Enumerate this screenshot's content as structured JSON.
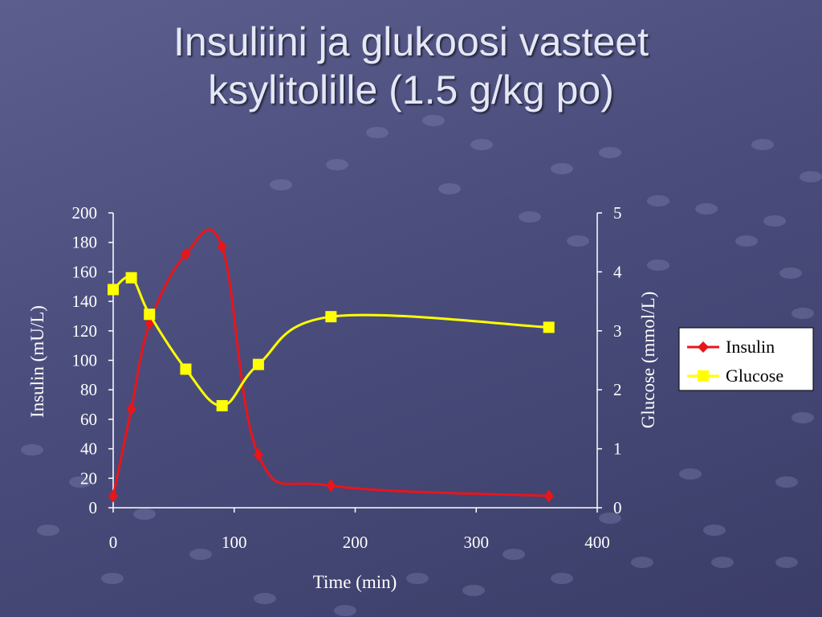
{
  "slide": {
    "title_line1": "Insuliini ja glukoosi vasteet",
    "title_line2": "ksylitolille (1.5 g/kg po)"
  },
  "colors": {
    "background": "#4a4d7c",
    "insulin": "#e8151b",
    "glucose": "#ffff00",
    "text": "#ffffff",
    "legend_bg": "#ffffff"
  },
  "chart_data": {
    "type": "line",
    "title": "",
    "xlabel": "Time (min)",
    "ylabel": "Insulin (mU/L)",
    "y2label": "Glucose (mmol/L)",
    "xlim": [
      0,
      400
    ],
    "ylim": [
      0,
      200
    ],
    "y2lim": [
      0,
      5
    ],
    "xticks": [
      0,
      100,
      200,
      300,
      400
    ],
    "yticks": [
      0,
      20,
      40,
      60,
      80,
      100,
      120,
      140,
      160,
      180,
      200
    ],
    "y2ticks": [
      0,
      1,
      2,
      3,
      4,
      5
    ],
    "grid": false,
    "legend_position": "right",
    "series": [
      {
        "name": "Insulin",
        "axis": "left",
        "marker": "diamond",
        "color": "#e8151b",
        "x": [
          0,
          15,
          30,
          60,
          90,
          120,
          180,
          360
        ],
        "y": [
          8,
          67,
          125,
          172,
          177,
          36,
          15,
          8
        ]
      },
      {
        "name": "Glucose",
        "axis": "right",
        "marker": "square",
        "color": "#ffff00",
        "x": [
          0,
          15,
          30,
          60,
          90,
          120,
          180,
          360
        ],
        "y": [
          3.7,
          3.9,
          3.28,
          2.35,
          1.73,
          2.43,
          3.24,
          3.06
        ]
      }
    ]
  }
}
